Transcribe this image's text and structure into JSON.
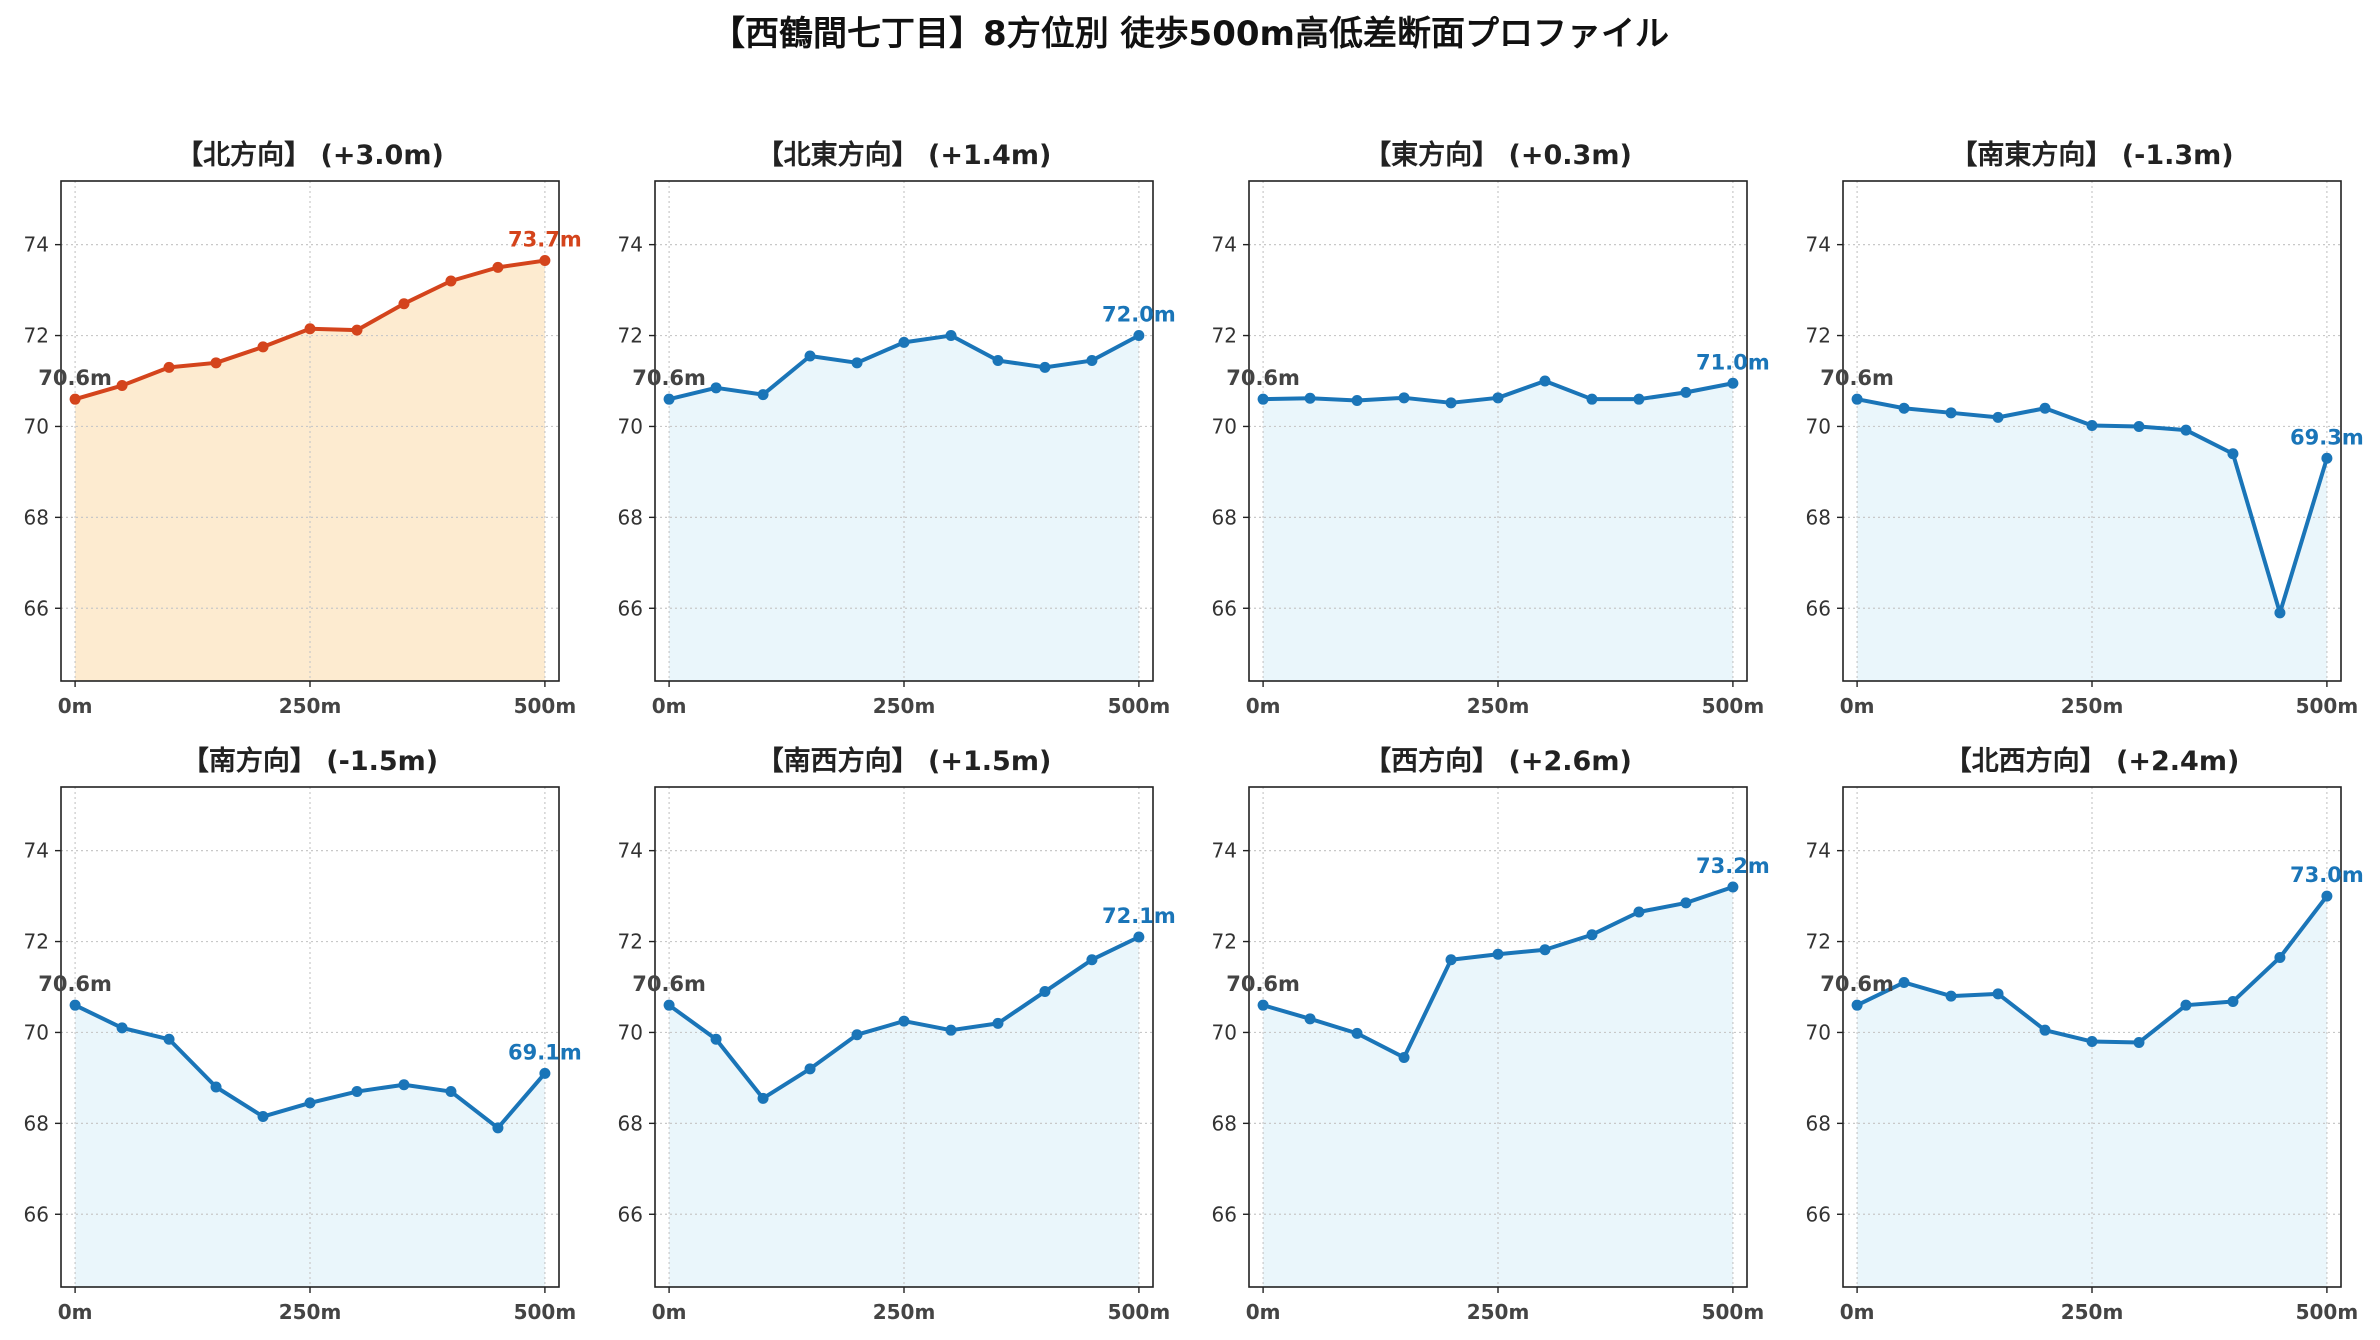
{
  "title": "【西鶴間七丁目】8方位別 徒歩500m高低差断面プロファイル",
  "colors": {
    "highlight_line": "#d4441c",
    "highlight_fill": "#fdebd0",
    "normal_line": "#1a75b8",
    "normal_fill": "#eaf6fb",
    "start_label": "#444444",
    "grid": "#c8c8c8"
  },
  "chart_data": [
    {
      "type": "area",
      "title": "【北方向】 (+3.0m)",
      "highlight": true,
      "x": [
        0,
        50,
        100,
        150,
        200,
        250,
        300,
        350,
        400,
        450,
        500
      ],
      "values": [
        70.6,
        70.9,
        71.3,
        71.4,
        71.75,
        72.15,
        72.12,
        72.7,
        73.2,
        73.5,
        73.65
      ],
      "start_label": "70.6m",
      "end_label": "73.7m",
      "x_ticks": [
        "0m",
        "250m",
        "500m"
      ],
      "y_ticks": [
        "66",
        "68",
        "70",
        "72",
        "74"
      ],
      "ylim": [
        64.4,
        75.4
      ],
      "xlim": [
        -15,
        515
      ],
      "grid": true
    },
    {
      "type": "area",
      "title": "【北東方向】 (+1.4m)",
      "highlight": false,
      "x": [
        0,
        50,
        100,
        150,
        200,
        250,
        300,
        350,
        400,
        450,
        500
      ],
      "values": [
        70.6,
        70.85,
        70.7,
        71.55,
        71.4,
        71.85,
        72.0,
        71.45,
        71.3,
        71.45,
        72.0
      ],
      "start_label": "70.6m",
      "end_label": "72.0m",
      "x_ticks": [
        "0m",
        "250m",
        "500m"
      ],
      "y_ticks": [
        "66",
        "68",
        "70",
        "72",
        "74"
      ],
      "ylim": [
        64.4,
        75.4
      ],
      "xlim": [
        -15,
        515
      ],
      "grid": true
    },
    {
      "type": "area",
      "title": "【東方向】 (+0.3m)",
      "highlight": false,
      "x": [
        0,
        50,
        100,
        150,
        200,
        250,
        300,
        350,
        400,
        450,
        500
      ],
      "values": [
        70.6,
        70.62,
        70.57,
        70.63,
        70.52,
        70.63,
        71.0,
        70.6,
        70.6,
        70.75,
        70.95
      ],
      "start_label": "70.6m",
      "end_label": "71.0m",
      "x_ticks": [
        "0m",
        "250m",
        "500m"
      ],
      "y_ticks": [
        "66",
        "68",
        "70",
        "72",
        "74"
      ],
      "ylim": [
        64.4,
        75.4
      ],
      "xlim": [
        -15,
        515
      ],
      "grid": true
    },
    {
      "type": "area",
      "title": "【南東方向】 (-1.3m)",
      "highlight": false,
      "x": [
        0,
        50,
        100,
        150,
        200,
        250,
        300,
        350,
        400,
        450,
        500
      ],
      "values": [
        70.6,
        70.4,
        70.3,
        70.2,
        70.4,
        70.02,
        70.0,
        69.92,
        69.4,
        65.9,
        69.3
      ],
      "start_label": "70.6m",
      "end_label": "69.3m",
      "x_ticks": [
        "0m",
        "250m",
        "500m"
      ],
      "y_ticks": [
        "66",
        "68",
        "70",
        "72",
        "74"
      ],
      "ylim": [
        64.4,
        75.4
      ],
      "xlim": [
        -15,
        515
      ],
      "grid": true
    },
    {
      "type": "area",
      "title": "【南方向】 (-1.5m)",
      "highlight": false,
      "x": [
        0,
        50,
        100,
        150,
        200,
        250,
        300,
        350,
        400,
        450,
        500
      ],
      "values": [
        70.6,
        70.1,
        69.85,
        68.8,
        68.15,
        68.45,
        68.7,
        68.85,
        68.7,
        67.9,
        69.1
      ],
      "start_label": "70.6m",
      "end_label": "69.1m",
      "x_ticks": [
        "0m",
        "250m",
        "500m"
      ],
      "y_ticks": [
        "66",
        "68",
        "70",
        "72",
        "74"
      ],
      "ylim": [
        64.4,
        75.4
      ],
      "xlim": [
        -15,
        515
      ],
      "grid": true
    },
    {
      "type": "area",
      "title": "【南西方向】 (+1.5m)",
      "highlight": false,
      "x": [
        0,
        50,
        100,
        150,
        200,
        250,
        300,
        350,
        400,
        450,
        500
      ],
      "values": [
        70.6,
        69.85,
        68.55,
        69.2,
        69.95,
        70.25,
        70.05,
        70.2,
        70.9,
        71.6,
        72.1
      ],
      "start_label": "70.6m",
      "end_label": "72.1m",
      "x_ticks": [
        "0m",
        "250m",
        "500m"
      ],
      "y_ticks": [
        "66",
        "68",
        "70",
        "72",
        "74"
      ],
      "ylim": [
        64.4,
        75.4
      ],
      "xlim": [
        -15,
        515
      ],
      "grid": true
    },
    {
      "type": "area",
      "title": "【西方向】 (+2.6m)",
      "highlight": false,
      "x": [
        0,
        50,
        100,
        150,
        200,
        250,
        300,
        350,
        400,
        450,
        500
      ],
      "values": [
        70.6,
        70.3,
        69.98,
        69.45,
        71.6,
        71.72,
        71.82,
        72.15,
        72.65,
        72.85,
        73.2
      ],
      "start_label": "70.6m",
      "end_label": "73.2m",
      "x_ticks": [
        "0m",
        "250m",
        "500m"
      ],
      "y_ticks": [
        "66",
        "68",
        "70",
        "72",
        "74"
      ],
      "ylim": [
        64.4,
        75.4
      ],
      "xlim": [
        -15,
        515
      ],
      "grid": true
    },
    {
      "type": "area",
      "title": "【北西方向】 (+2.4m)",
      "highlight": false,
      "x": [
        0,
        50,
        100,
        150,
        200,
        250,
        300,
        350,
        400,
        450,
        500
      ],
      "values": [
        70.6,
        71.1,
        70.8,
        70.85,
        70.05,
        69.8,
        69.78,
        70.6,
        70.68,
        71.65,
        73.0
      ],
      "start_label": "70.6m",
      "end_label": "73.0m",
      "x_ticks": [
        "0m",
        "250m",
        "500m"
      ],
      "y_ticks": [
        "66",
        "68",
        "70",
        "72",
        "74"
      ],
      "ylim": [
        64.4,
        75.4
      ],
      "xlim": [
        -15,
        515
      ],
      "grid": true
    }
  ]
}
